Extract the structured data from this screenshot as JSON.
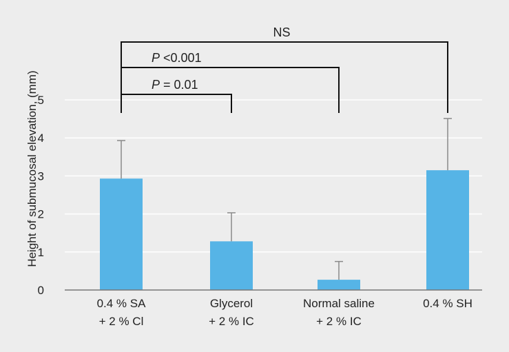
{
  "chart_data": {
    "type": "bar",
    "title": "",
    "xlabel": "",
    "ylabel": "Height of submucosal elevation, (mm)",
    "ylim": [
      0,
      5
    ],
    "yticks": [
      "0",
      "1",
      "2",
      "3",
      "4",
      "5"
    ],
    "grid": "horizontal",
    "categories": [
      [
        "0.4 % SA",
        "+ 2 % Cl"
      ],
      [
        "Glycerol",
        "+ 2 % IC"
      ],
      [
        "Normal saline",
        "+ 2 % IC"
      ],
      [
        "0.4 % SH",
        ""
      ]
    ],
    "values": [
      2.93,
      1.28,
      0.27,
      3.15
    ],
    "errors": [
      1.0,
      0.75,
      0.48,
      1.36
    ],
    "bar_color": "#56b4e6",
    "error_color": "#888888",
    "bracket_color": "#111111",
    "significance": [
      {
        "from": 0,
        "to": 1,
        "italic": "P",
        "rest": " = 0.01"
      },
      {
        "from": 0,
        "to": 2,
        "italic": "P",
        "rest": " <0.001"
      },
      {
        "from": 0,
        "to": 3,
        "italic": "",
        "rest": "NS"
      }
    ]
  }
}
